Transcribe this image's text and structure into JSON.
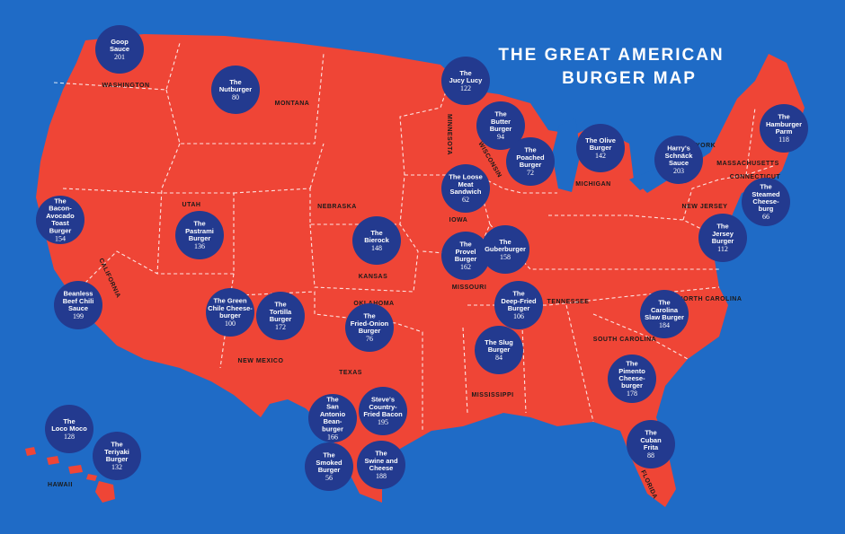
{
  "title": {
    "lines": [
      "THE GREAT AMERICAN",
      "BURGER MAP"
    ]
  },
  "states": [
    "WASHINGTON",
    "MONTANA",
    "MINNESOTA",
    "WISCONSIN",
    "MICHIGAN",
    "NEW YORK",
    "MASSACHUSETTS",
    "CONNECTICUT",
    "NEW JERSEY",
    "UTAH",
    "NEBRASKA",
    "IOWA",
    "KANSAS",
    "MISSOURI",
    "CALIFORNIA",
    "OKLAHOMA",
    "TENNESSEE",
    "NORTH CAROLINA",
    "SOUTH CAROLINA",
    "NEW MEXICO",
    "TEXAS",
    "MISSISSIPPI",
    "FLORIDA",
    "HAWAII"
  ],
  "burgers": [
    {
      "name": [
        "Goop",
        "Sauce"
      ],
      "page": 201
    },
    {
      "name": [
        "The",
        "Nutburger"
      ],
      "page": 80
    },
    {
      "name": [
        "The",
        "Jucy Lucy"
      ],
      "page": 122
    },
    {
      "name": [
        "The",
        "Butter",
        "Burger"
      ],
      "page": 94
    },
    {
      "name": [
        "The",
        "Poached",
        "Burger"
      ],
      "page": 72
    },
    {
      "name": [
        "The Olive",
        "Burger"
      ],
      "page": 142
    },
    {
      "name": [
        "Harry's",
        "Schnäck",
        "Sauce"
      ],
      "page": 203
    },
    {
      "name": [
        "The",
        "Hamburger",
        "Parm"
      ],
      "page": 118
    },
    {
      "name": [
        "The",
        "Steamed",
        "Cheese-",
        "burg"
      ],
      "page": 66
    },
    {
      "name": [
        "The",
        "Jersey",
        "Burger"
      ],
      "page": 112
    },
    {
      "name": [
        "The Loose",
        "Meat",
        "Sandwich"
      ],
      "page": 62
    },
    {
      "name": [
        "The",
        "Bacon-",
        "Avocado",
        "Toast",
        "Burger"
      ],
      "page": 154
    },
    {
      "name": [
        "The",
        "Pastrami",
        "Burger"
      ],
      "page": 136
    },
    {
      "name": [
        "The",
        "Bierock"
      ],
      "page": 148
    },
    {
      "name": [
        "The",
        "Provel",
        "Burger"
      ],
      "page": 162
    },
    {
      "name": [
        "The",
        "Guberburger"
      ],
      "page": 158
    },
    {
      "name": [
        "Beanless",
        "Beef Chili",
        "Sauce"
      ],
      "page": 199
    },
    {
      "name": [
        "The Green",
        "Chile Cheese-",
        "burger"
      ],
      "page": 100
    },
    {
      "name": [
        "The",
        "Tortilla",
        "Burger"
      ],
      "page": 172
    },
    {
      "name": [
        "The",
        "Fried-Onion",
        "Burger"
      ],
      "page": 76
    },
    {
      "name": [
        "The",
        "Deep-Fried",
        "Burger"
      ],
      "page": 106
    },
    {
      "name": [
        "The",
        "Carolina",
        "Slaw Burger"
      ],
      "page": 184
    },
    {
      "name": [
        "The Slug",
        "Burger"
      ],
      "page": 84
    },
    {
      "name": [
        "The",
        "Pimento",
        "Cheese-",
        "burger"
      ],
      "page": 178
    },
    {
      "name": [
        "The",
        "San",
        "Antonio",
        "Bean-",
        "burger"
      ],
      "page": 166
    },
    {
      "name": [
        "Steve's",
        "Country-",
        "Fried Bacon"
      ],
      "page": 195
    },
    {
      "name": [
        "The",
        "Smoked",
        "Burger"
      ],
      "page": 56
    },
    {
      "name": [
        "The",
        "Swine and",
        "Cheese"
      ],
      "page": 188
    },
    {
      "name": [
        "The",
        "Loco Moco"
      ],
      "page": 128
    },
    {
      "name": [
        "The",
        "Teriyaki",
        "Burger"
      ],
      "page": 132
    },
    {
      "name": [
        "The",
        "Cuban",
        "Frita"
      ],
      "page": 88
    }
  ]
}
